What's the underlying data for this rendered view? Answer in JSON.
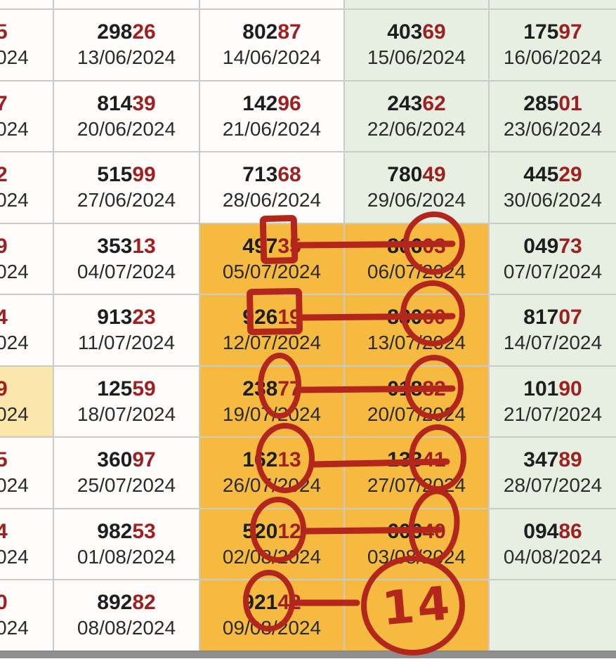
{
  "colors": {
    "highlight_orange": "#f6ba40",
    "highlight_green": "#e7efe2",
    "highlight_pale_yellow": "#fbe7ab",
    "cell_background": "#fdfcfa",
    "gridline": "#cbcbcb",
    "annotation_red": "#b3261c",
    "number_dark": "#1e1e1e",
    "number_red": "#9e2020",
    "date_text": "#2b2b2b",
    "scrollbar_gray": "#8f8f8f"
  },
  "annotations": {
    "big_circle_label": "14",
    "marks": [
      {
        "row": "05/07/2024",
        "type": "square-then-line-to-circle",
        "from": "49735",
        "to": "80603"
      },
      {
        "row": "12/07/2024",
        "type": "square-then-line-to-circle",
        "from": "92619",
        "to": "83060"
      },
      {
        "row": "19/07/2024",
        "type": "circle-then-line-to-circle",
        "from": "23877",
        "to": "01882"
      },
      {
        "row": "26/07/2024",
        "type": "circle-then-line-to-circle",
        "from": "16213",
        "to": "13341"
      },
      {
        "row": "02/08/2024",
        "type": "circle-then-line-to-circle",
        "from": "52012",
        "to": "60640"
      },
      {
        "row": "09/08/2024",
        "type": "circle-then-line-to-big-circle",
        "from": "92142",
        "to": "14"
      }
    ]
  },
  "table": {
    "rows": [
      {
        "sliver": true,
        "cells": [
          {
            "type": "sliver",
            "bg": "white"
          },
          {
            "type": "sliver",
            "bg": "white"
          },
          {
            "type": "sliver",
            "bg": "white"
          },
          {
            "type": "sliver",
            "bg": "green"
          },
          {
            "type": "sliver",
            "bg": "green"
          }
        ]
      },
      {
        "cells": [
          {
            "type": "partial",
            "digit": "5",
            "date_tail": "024",
            "bg": "white"
          },
          {
            "type": "result",
            "number": "29826",
            "date": "13/06/2024",
            "bg": "white"
          },
          {
            "type": "result",
            "number": "80287",
            "date": "14/06/2024",
            "bg": "white"
          },
          {
            "type": "result",
            "number": "40369",
            "date": "15/06/2024",
            "bg": "green"
          },
          {
            "type": "result",
            "number": "17597",
            "date": "16/06/2024",
            "bg": "green"
          }
        ]
      },
      {
        "cells": [
          {
            "type": "partial",
            "digit": "7",
            "date_tail": "024",
            "bg": "white"
          },
          {
            "type": "result",
            "number": "81439",
            "date": "20/06/2024",
            "bg": "white"
          },
          {
            "type": "result",
            "number": "14296",
            "date": "21/06/2024",
            "bg": "white"
          },
          {
            "type": "result",
            "number": "24362",
            "date": "22/06/2024",
            "bg": "green"
          },
          {
            "type": "result",
            "number": "28501",
            "date": "23/06/2024",
            "bg": "green"
          }
        ]
      },
      {
        "cells": [
          {
            "type": "partial",
            "digit": "2",
            "date_tail": "024",
            "bg": "white"
          },
          {
            "type": "result",
            "number": "51599",
            "date": "27/06/2024",
            "bg": "white"
          },
          {
            "type": "result",
            "number": "71368",
            "date": "28/06/2024",
            "bg": "white"
          },
          {
            "type": "result",
            "number": "78049",
            "date": "29/06/2024",
            "bg": "green"
          },
          {
            "type": "result",
            "number": "44529",
            "date": "30/06/2024",
            "bg": "green"
          }
        ]
      },
      {
        "cells": [
          {
            "type": "partial",
            "digit": "9",
            "date_tail": "024",
            "bg": "white"
          },
          {
            "type": "result",
            "number": "35313",
            "date": "04/07/2024",
            "bg": "white"
          },
          {
            "type": "result",
            "number": "49735",
            "date": "05/07/2024",
            "bg": "orange"
          },
          {
            "type": "result",
            "number": "80603",
            "date": "06/07/2024",
            "bg": "orange"
          },
          {
            "type": "result",
            "number": "04973",
            "date": "07/07/2024",
            "bg": "green"
          }
        ]
      },
      {
        "cells": [
          {
            "type": "partial",
            "digit": "4",
            "date_tail": "024",
            "bg": "white"
          },
          {
            "type": "result",
            "number": "91323",
            "date": "11/07/2024",
            "bg": "white"
          },
          {
            "type": "result",
            "number": "92619",
            "date": "12/07/2024",
            "bg": "orange"
          },
          {
            "type": "result",
            "number": "83060",
            "date": "13/07/2024",
            "bg": "orange"
          },
          {
            "type": "result",
            "number": "81707",
            "date": "14/07/2024",
            "bg": "green"
          }
        ]
      },
      {
        "cells": [
          {
            "type": "partial",
            "digit": "9",
            "date_tail": "024",
            "bg": "pale_yellow"
          },
          {
            "type": "result",
            "number": "12559",
            "date": "18/07/2024",
            "bg": "white"
          },
          {
            "type": "result",
            "number": "23877",
            "date": "19/07/2024",
            "bg": "orange"
          },
          {
            "type": "result",
            "number": "01882",
            "date": "20/07/2024",
            "bg": "orange"
          },
          {
            "type": "result",
            "number": "10190",
            "date": "21/07/2024",
            "bg": "green"
          }
        ]
      },
      {
        "cells": [
          {
            "type": "partial",
            "digit": "5",
            "date_tail": "024",
            "bg": "white"
          },
          {
            "type": "result",
            "number": "36097",
            "date": "25/07/2024",
            "bg": "white"
          },
          {
            "type": "result",
            "number": "16213",
            "date": "26/07/2024",
            "bg": "orange"
          },
          {
            "type": "result",
            "number": "13341",
            "date": "27/07/2024",
            "bg": "orange"
          },
          {
            "type": "result",
            "number": "34789",
            "date": "28/07/2024",
            "bg": "green"
          }
        ]
      },
      {
        "cells": [
          {
            "type": "partial",
            "digit": "4",
            "date_tail": "024",
            "bg": "white"
          },
          {
            "type": "result",
            "number": "98253",
            "date": "01/08/2024",
            "bg": "white"
          },
          {
            "type": "result",
            "number": "52012",
            "date": "02/08/2024",
            "bg": "orange"
          },
          {
            "type": "result",
            "number": "60640",
            "date": "03/08/2024",
            "bg": "orange"
          },
          {
            "type": "result",
            "number": "09486",
            "date": "04/08/2024",
            "bg": "green"
          }
        ]
      },
      {
        "cells": [
          {
            "type": "partial",
            "digit": "0",
            "date_tail": "024",
            "bg": "white"
          },
          {
            "type": "result",
            "number": "89282",
            "date": "08/08/2024",
            "bg": "white"
          },
          {
            "type": "result",
            "number": "92142",
            "date": "09/08/2024",
            "bg": "orange"
          },
          {
            "type": "empty",
            "bg": "orange"
          },
          {
            "type": "empty",
            "bg": "green"
          }
        ]
      }
    ]
  }
}
